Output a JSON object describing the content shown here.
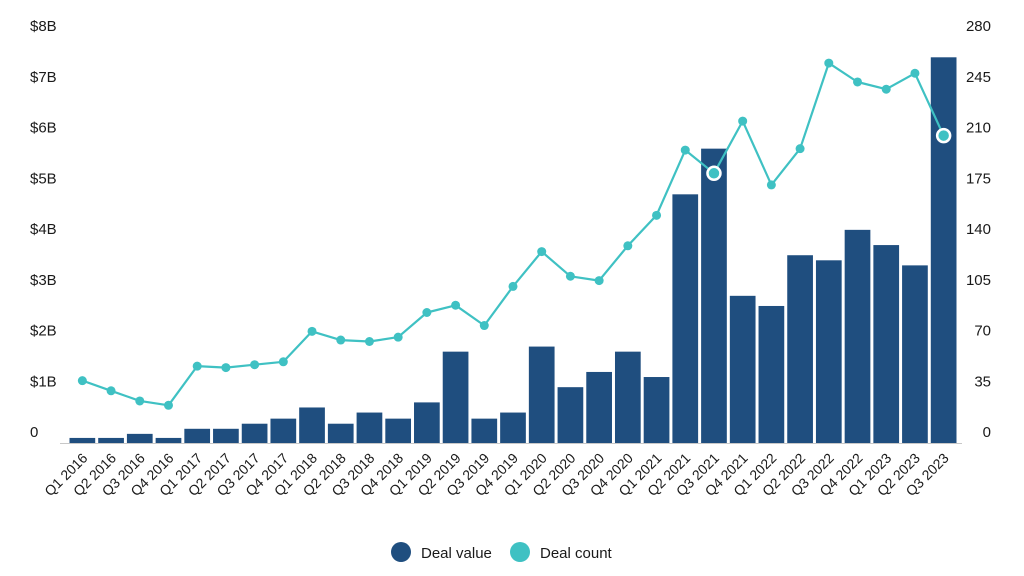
{
  "chart_data": {
    "type": "bar",
    "title": "",
    "xlabel": "",
    "ylabel": "",
    "categories": [
      "Q1 2016",
      "Q2 2016",
      "Q3 2016",
      "Q4 2016",
      "Q1 2017",
      "Q2 2017",
      "Q3 2017",
      "Q4 2017",
      "Q1 2018",
      "Q2 2018",
      "Q3 2018",
      "Q4 2018",
      "Q1 2019",
      "Q2 2019",
      "Q3 2019",
      "Q4 2019",
      "Q1 2020",
      "Q2 2020",
      "Q3 2020",
      "Q4 2020",
      "Q1 2021",
      "Q2 2021",
      "Q3 2021",
      "Q4 2021",
      "Q1 2022",
      "Q2 2022",
      "Q3 2022",
      "Q4 2022",
      "Q1 2023",
      "Q2 2023",
      "Q3 2023"
    ],
    "series": [
      {
        "name": "Deal value",
        "type": "bar",
        "axis": "left",
        "color": "#1f4e7f",
        "values": [
          0.1,
          0.1,
          0.18,
          0.1,
          0.28,
          0.28,
          0.38,
          0.48,
          0.7,
          0.38,
          0.6,
          0.48,
          0.8,
          1.8,
          0.48,
          0.6,
          1.9,
          1.1,
          1.4,
          1.8,
          1.3,
          4.9,
          5.8,
          2.9,
          2.7,
          3.7,
          3.6,
          4.2,
          3.9,
          3.5,
          7.6
        ]
      },
      {
        "name": "Deal count",
        "type": "line",
        "axis": "right",
        "color": "#3fc1c3",
        "values": [
          43,
          36,
          29,
          26,
          53,
          52,
          54,
          56,
          77,
          71,
          70,
          73,
          90,
          95,
          81,
          108,
          132,
          115,
          112,
          136,
          157,
          202,
          186,
          222,
          178,
          203,
          262,
          249,
          244,
          255,
          212
        ]
      }
    ],
    "left_axis": {
      "ylim": [
        0,
        8
      ],
      "ticks": [
        0,
        1,
        2,
        3,
        4,
        5,
        6,
        7,
        8
      ],
      "tick_labels": [
        "0",
        "$1B",
        "$2B",
        "$3B",
        "$4B",
        "$5B",
        "$6B",
        "$7B",
        "$8B"
      ]
    },
    "right_axis": {
      "ylim": [
        0,
        280
      ],
      "ticks": [
        0,
        35,
        70,
        105,
        140,
        175,
        210,
        245,
        280
      ],
      "tick_labels": [
        "0",
        "35",
        "70",
        "105",
        "140",
        "175",
        "210",
        "245",
        "280"
      ]
    },
    "highlighted_points": [
      22,
      30
    ],
    "grid": false,
    "legend": {
      "placement": "bottom-center",
      "items": [
        {
          "label": "Deal value",
          "color": "#1f4e7f"
        },
        {
          "label": "Deal count",
          "color": "#3fc1c3"
        }
      ]
    }
  }
}
